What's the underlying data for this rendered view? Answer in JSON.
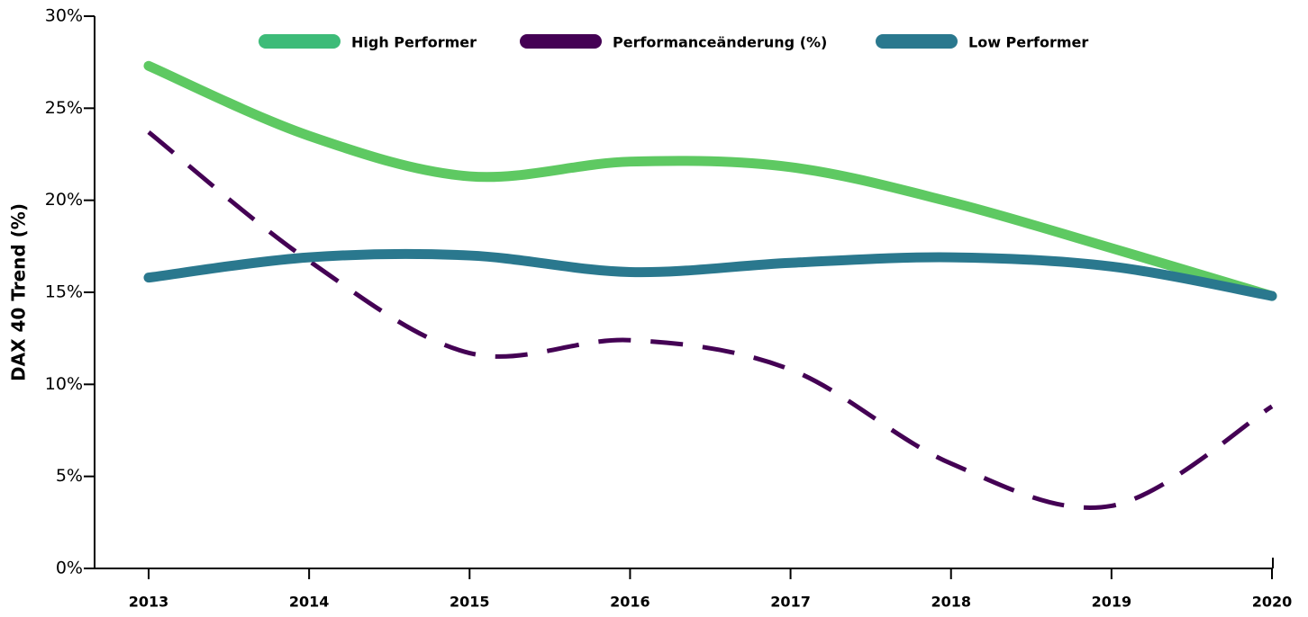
{
  "chart_data": {
    "type": "line",
    "y_label": "DAX 40 Trend (%)",
    "categories": [
      "2013",
      "2014",
      "2015",
      "2016",
      "2017",
      "2018",
      "2019",
      "2020"
    ],
    "series": [
      {
        "name": "High Performer",
        "color": "#5ec962",
        "legend_color": "#3dbb78",
        "style": "solid",
        "values": [
          27.3,
          23.5,
          21.3,
          22.1,
          21.8,
          19.9,
          17.4,
          14.8
        ]
      },
      {
        "name": "Performanceänderung (%)",
        "color": "#440154",
        "style": "dashed",
        "values": [
          23.7,
          16.7,
          11.7,
          12.4,
          10.8,
          5.7,
          3.4,
          8.8
        ]
      },
      {
        "name": "Low Performer",
        "color": "#2a788e",
        "style": "solid",
        "values": [
          15.8,
          16.9,
          17.0,
          16.1,
          16.6,
          16.9,
          16.4,
          14.8
        ]
      }
    ],
    "ylim": [
      0,
      30
    ],
    "yticks": [
      {
        "value": 0,
        "label": "0%"
      },
      {
        "value": 5,
        "label": "5%"
      },
      {
        "value": 10,
        "label": "10%"
      },
      {
        "value": 15,
        "label": "15%"
      },
      {
        "value": 20,
        "label": "20%"
      },
      {
        "value": 25,
        "label": "25%"
      },
      {
        "value": 30,
        "label": "30%"
      }
    ],
    "legend": "top",
    "grid": false
  }
}
